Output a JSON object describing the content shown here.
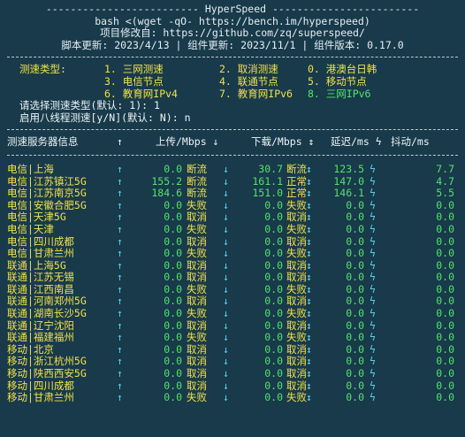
{
  "header": {
    "title_line": "------------------------- HyperSpeed ------------------------",
    "bash_line": "bash <(wget -qO- https://bench.im/hyperspeed)",
    "project_line": "项目修改自: https://github.com/zq/superspeed/",
    "version_line": "脚本更新: 2023/4/13 | 组件更新: 2023/11/1 | 组件版本: 0.17.0"
  },
  "menu": {
    "label": "测速类型:",
    "items": [
      [
        "1. 三网测速",
        "2. 取消测速",
        "0. 港澳台日韩"
      ],
      [
        "3. 电信节点",
        "4. 联通节点",
        "5. 移动节点"
      ],
      [
        "6. 教育网IPv4",
        "7. 教育网IPv6",
        "8. 三网IPv6"
      ]
    ],
    "prompt1": "请选择测速类型(默认: 1): 1",
    "prompt2": "启用八线程测速[y/N](默认: N): n"
  },
  "table": {
    "headers": {
      "name": "测速服务器信息",
      "sort1": "↑",
      "up": "上传/Mbps ↓",
      "down": "下载/Mbps ↕",
      "lat": "延迟/ms ϟ",
      "jit": "抖动/ms"
    },
    "rows": [
      {
        "name": "电信|上海",
        "up": "0.0",
        "up_s": "断流",
        "dn": "30.7",
        "dn_s": "断流",
        "lat": "123.5",
        "lat_s": "ϟ",
        "jit": "7.7"
      },
      {
        "name": "电信|江苏镇江5G",
        "up": "155.2",
        "up_s": "断流",
        "dn": "161.1",
        "dn_s": "正常",
        "lat": "147.0",
        "lat_s": "ϟ",
        "jit": "4.7"
      },
      {
        "name": "电信|江苏南京5G",
        "up": "184.6",
        "up_s": "断流",
        "dn": "151.0",
        "dn_s": "正常",
        "lat": "146.1",
        "lat_s": "ϟ",
        "jit": "5.5"
      },
      {
        "name": "电信|安徽合肥5G",
        "up": "0.0",
        "up_s": "失败",
        "dn": "0.0",
        "dn_s": "失败",
        "lat": "0.0",
        "lat_s": "ϟ",
        "jit": "0.0"
      },
      {
        "name": "电信|天津5G",
        "up": "0.0",
        "up_s": "取消",
        "dn": "0.0",
        "dn_s": "取消",
        "lat": "0.0",
        "lat_s": "ϟ",
        "jit": "0.0"
      },
      {
        "name": "电信|天津",
        "up": "0.0",
        "up_s": "失败",
        "dn": "0.0",
        "dn_s": "失败",
        "lat": "0.0",
        "lat_s": "ϟ",
        "jit": "0.0"
      },
      {
        "name": "电信|四川成都",
        "up": "0.0",
        "up_s": "取消",
        "dn": "0.0",
        "dn_s": "取消",
        "lat": "0.0",
        "lat_s": "ϟ",
        "jit": "0.0"
      },
      {
        "name": "电信|甘肃兰州",
        "up": "0.0",
        "up_s": "失败",
        "dn": "0.0",
        "dn_s": "失败",
        "lat": "0.0",
        "lat_s": "ϟ",
        "jit": "0.0"
      },
      {
        "name": "联通|上海5G",
        "up": "0.0",
        "up_s": "取消",
        "dn": "0.0",
        "dn_s": "取消",
        "lat": "0.0",
        "lat_s": "ϟ",
        "jit": "0.0"
      },
      {
        "name": "联通|江苏无锡",
        "up": "0.0",
        "up_s": "取消",
        "dn": "0.0",
        "dn_s": "取消",
        "lat": "0.0",
        "lat_s": "ϟ",
        "jit": "0.0"
      },
      {
        "name": "联通|江西南昌",
        "up": "0.0",
        "up_s": "失败",
        "dn": "0.0",
        "dn_s": "失败",
        "lat": "0.0",
        "lat_s": "ϟ",
        "jit": "0.0"
      },
      {
        "name": "联通|河南郑州5G",
        "up": "0.0",
        "up_s": "取消",
        "dn": "0.0",
        "dn_s": "取消",
        "lat": "0.0",
        "lat_s": "ϟ",
        "jit": "0.0"
      },
      {
        "name": "联通|湖南长沙5G",
        "up": "0.0",
        "up_s": "失败",
        "dn": "0.0",
        "dn_s": "失败",
        "lat": "0.0",
        "lat_s": "ϟ",
        "jit": "0.0"
      },
      {
        "name": "联通|辽宁沈阳",
        "up": "0.0",
        "up_s": "取消",
        "dn": "0.0",
        "dn_s": "取消",
        "lat": "0.0",
        "lat_s": "ϟ",
        "jit": "0.0"
      },
      {
        "name": "联通|福建福州",
        "up": "0.0",
        "up_s": "失败",
        "dn": "0.0",
        "dn_s": "失败",
        "lat": "0.0",
        "lat_s": "ϟ",
        "jit": "0.0"
      },
      {
        "name": "移动|北京",
        "up": "0.0",
        "up_s": "取消",
        "dn": "0.0",
        "dn_s": "取消",
        "lat": "0.0",
        "lat_s": "ϟ",
        "jit": "0.0"
      },
      {
        "name": "移动|浙江杭州5G",
        "up": "0.0",
        "up_s": "取消",
        "dn": "0.0",
        "dn_s": "取消",
        "lat": "0.0",
        "lat_s": "ϟ",
        "jit": "0.0"
      },
      {
        "name": "移动|陕西西安5G",
        "up": "0.0",
        "up_s": "取消",
        "dn": "0.0",
        "dn_s": "取消",
        "lat": "0.0",
        "lat_s": "ϟ",
        "jit": "0.0"
      },
      {
        "name": "移动|四川成都",
        "up": "0.0",
        "up_s": "取消",
        "dn": "0.0",
        "dn_s": "取消",
        "lat": "0.0",
        "lat_s": "ϟ",
        "jit": "0.0"
      },
      {
        "name": "移动|甘肃兰州",
        "up": "0.0",
        "up_s": "失败",
        "dn": "0.0",
        "dn_s": "失败",
        "lat": "0.0",
        "lat_s": "ϟ",
        "jit": "0.0"
      }
    ]
  }
}
